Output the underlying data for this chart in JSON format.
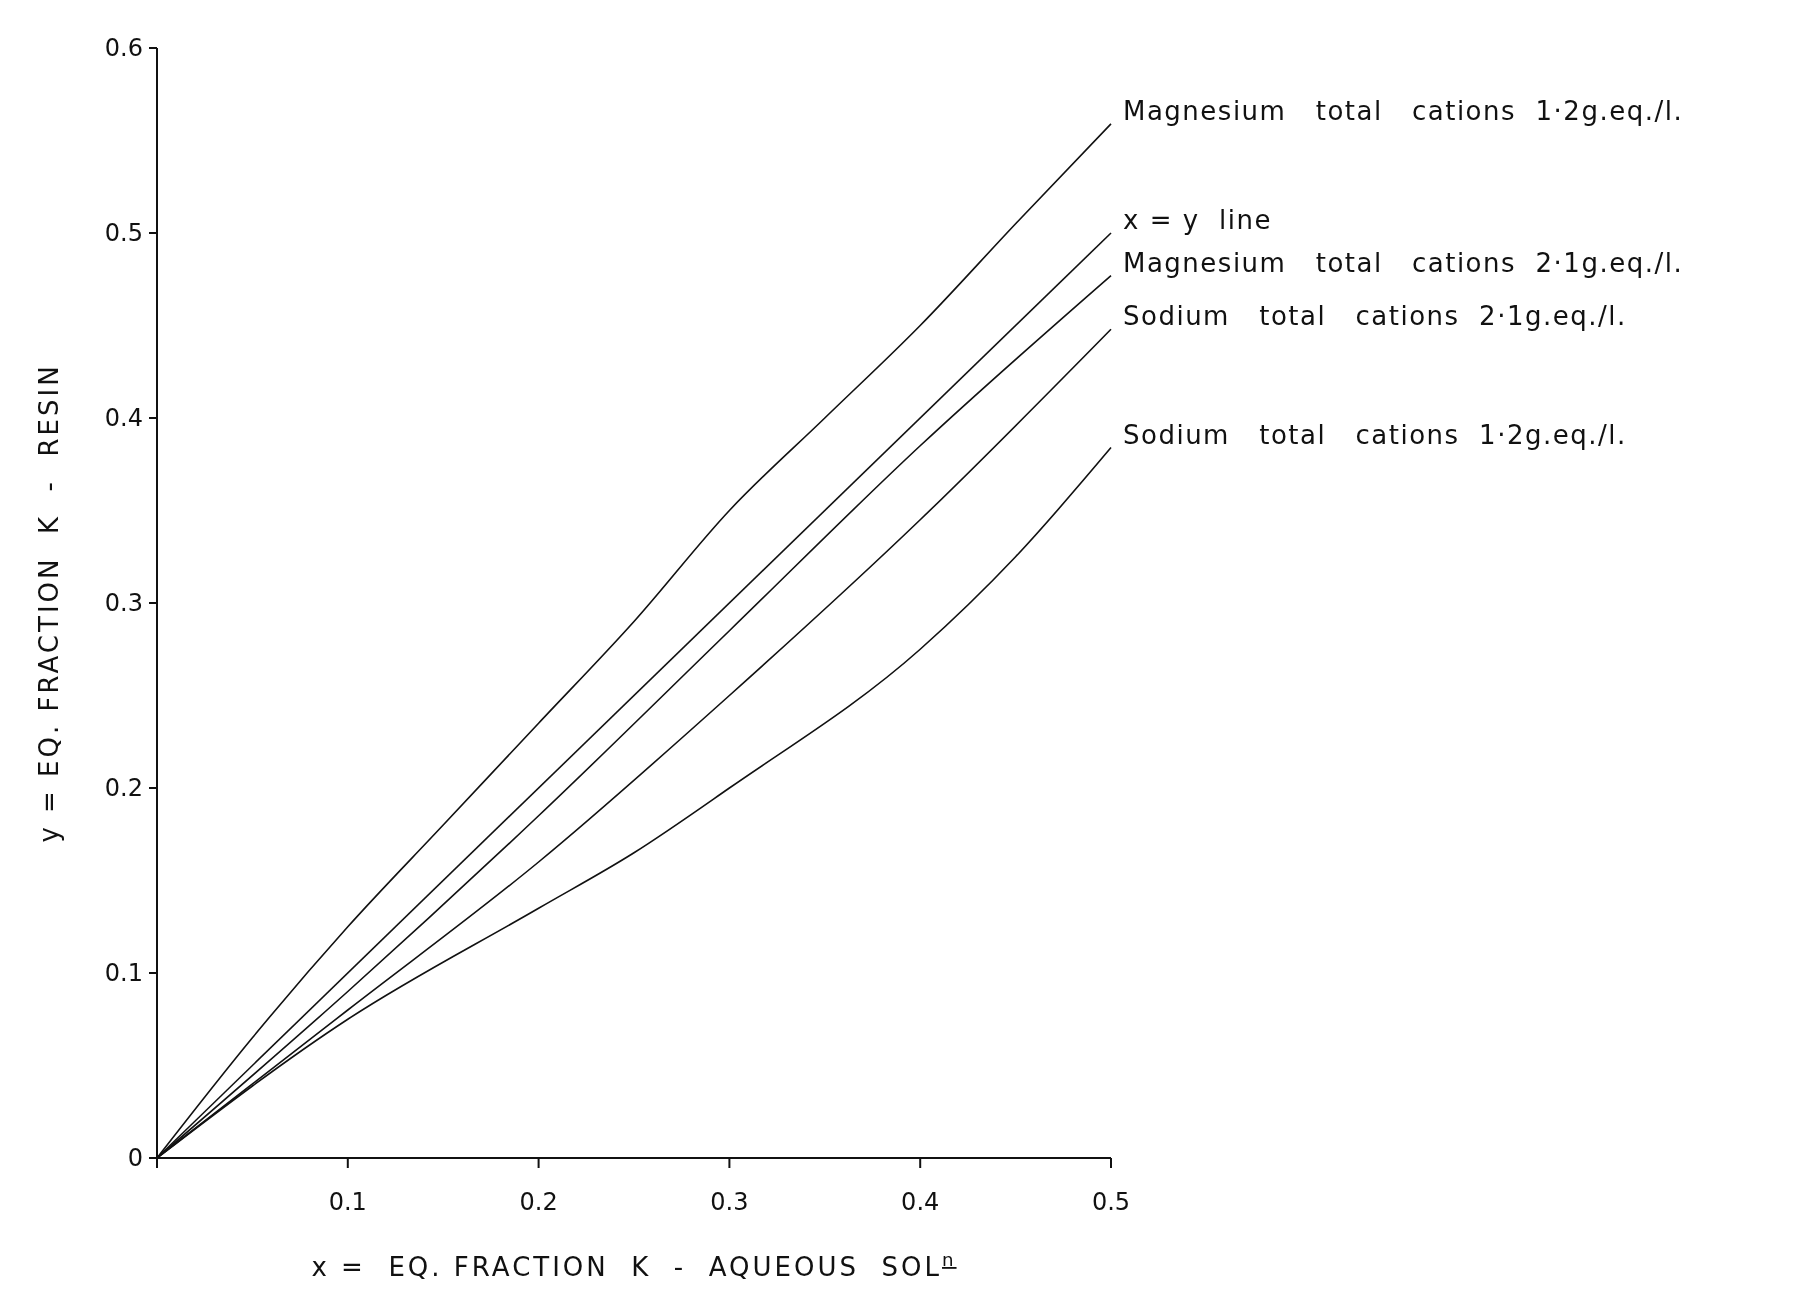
{
  "chart_data": {
    "type": "line",
    "xlabel": "x =  EQ. FRACTION  K  -  AQUEOUS  SOL$^{n}$",
    "ylabel": "y = EQ. FRACTION  K  -  RESIN",
    "xlim": [
      0,
      0.5
    ],
    "ylim": [
      0,
      0.6
    ],
    "xticks": [
      {
        "value": 0,
        "label": null
      },
      0.1,
      0.2,
      0.3,
      0.4,
      0.5
    ],
    "yticks": [
      0,
      0.1,
      0.2,
      0.3,
      0.4,
      0.5,
      0.6
    ],
    "grid": false,
    "marker": "none",
    "line_style": "solid",
    "series": [
      {
        "name": "Magnesium   total   cations  1·2g.eq./l.",
        "color": "#111111",
        "x": [
          0,
          0.05,
          0.1,
          0.15,
          0.2,
          0.25,
          0.3,
          0.35,
          0.4,
          0.45,
          0.5
        ],
        "values": [
          0,
          0.065,
          0.125,
          0.18,
          0.235,
          0.29,
          0.35,
          0.4,
          0.45,
          0.505,
          0.559
        ]
      },
      {
        "name": "x = y  line",
        "color": "#111111",
        "x": [
          0,
          0.5
        ],
        "values": [
          0,
          0.5
        ]
      },
      {
        "name": "Magnesium   total   cations  2·1g.eq./l.",
        "color": "#111111",
        "x": [
          0,
          0.1,
          0.2,
          0.3,
          0.4,
          0.5
        ],
        "values": [
          0,
          0.09,
          0.185,
          0.285,
          0.385,
          0.477
        ]
      },
      {
        "name": "Sodium   total   cations  2·1g.eq./l.",
        "color": "#111111",
        "x": [
          0,
          0.1,
          0.2,
          0.3,
          0.4,
          0.5
        ],
        "values": [
          0,
          0.08,
          0.16,
          0.25,
          0.345,
          0.448
        ]
      },
      {
        "name": "Sodium   total   cations  1·2g.eq./l.",
        "color": "#111111",
        "x": [
          0,
          0.1,
          0.2,
          0.25,
          0.3,
          0.4,
          0.45,
          0.5
        ],
        "values": [
          0,
          0.075,
          0.135,
          0.165,
          0.2,
          0.275,
          0.325,
          0.384
        ]
      }
    ]
  }
}
